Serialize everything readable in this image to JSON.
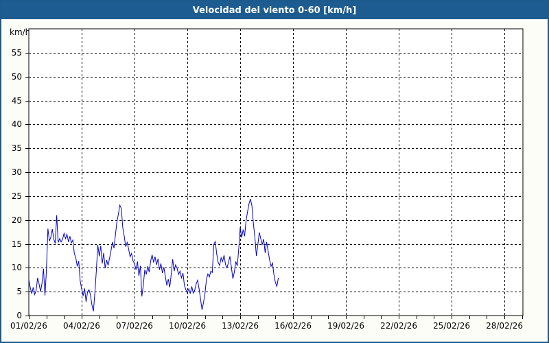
{
  "title": "Velocidad del viento 0-60 [km/h]",
  "colors": {
    "titlebar_bg": "#1d5c90",
    "titlebar_text": "#ffffff",
    "window_border": "#1c5a8e",
    "page_bg": "#fdfdf8",
    "plot_bg": "#ffffff",
    "grid": "#000000",
    "axis": "#000000",
    "line": "#0000cc"
  },
  "chart_data": {
    "type": "line",
    "title": "Velocidad del viento 0-60 [km/h]",
    "y_unit": "km/h",
    "ylabel": "km/h",
    "xlabel": "",
    "ylim": [
      0,
      60
    ],
    "y_ticks": [
      0,
      5,
      10,
      15,
      20,
      25,
      30,
      35,
      40,
      45,
      50,
      55
    ],
    "x_days_shown": 28.05,
    "x_tick_labels": [
      {
        "day": 0,
        "label": "01/02/26"
      },
      {
        "day": 3,
        "label": "04/02/26"
      },
      {
        "day": 6,
        "label": "07/02/26"
      },
      {
        "day": 9,
        "label": "10/02/26"
      },
      {
        "day": 12,
        "label": "13/02/26"
      },
      {
        "day": 15,
        "label": "16/02/26"
      },
      {
        "day": 18,
        "label": "19/02/26"
      },
      {
        "day": 21,
        "label": "22/02/26"
      },
      {
        "day": 24,
        "label": "25/02/26"
      },
      {
        "day": 27,
        "label": "28/02/26"
      }
    ],
    "x_minor_tick_days": [
      0,
      1,
      2,
      3,
      4,
      5,
      6,
      7,
      8,
      9,
      10,
      11,
      12,
      13,
      14,
      15,
      16,
      17,
      18,
      19,
      20,
      21,
      22,
      23,
      24,
      25,
      26,
      27,
      28
    ],
    "grid": "dashed",
    "legend": "none",
    "points_hours_kmh": [
      [
        0,
        7.5
      ],
      [
        2,
        5.8
      ],
      [
        4,
        4.6
      ],
      [
        6,
        5.9
      ],
      [
        8,
        4.4
      ],
      [
        10,
        5.3
      ],
      [
        12,
        7.9
      ],
      [
        14,
        6.6
      ],
      [
        16,
        5.0
      ],
      [
        18,
        6.8
      ],
      [
        20,
        9.8
      ],
      [
        22,
        4.2
      ],
      [
        24,
        9.5
      ],
      [
        26,
        18.2
      ],
      [
        28,
        15.6
      ],
      [
        30,
        16.4
      ],
      [
        32,
        18.1
      ],
      [
        34,
        16.0
      ],
      [
        36,
        15.1
      ],
      [
        38,
        21.0
      ],
      [
        40,
        15.3
      ],
      [
        42,
        16.1
      ],
      [
        44,
        15.4
      ],
      [
        46,
        16.0
      ],
      [
        48,
        17.2
      ],
      [
        50,
        16.1
      ],
      [
        52,
        17.0
      ],
      [
        54,
        15.4
      ],
      [
        56,
        16.6
      ],
      [
        58,
        15.2
      ],
      [
        60,
        15.8
      ],
      [
        62,
        13.0
      ],
      [
        64,
        12.1
      ],
      [
        66,
        10.3
      ],
      [
        68,
        11.4
      ],
      [
        70,
        7.2
      ],
      [
        72,
        5.6
      ],
      [
        74,
        4.1
      ],
      [
        76,
        5.7
      ],
      [
        78,
        2.9
      ],
      [
        80,
        4.9
      ],
      [
        82,
        5.4
      ],
      [
        84,
        4.3
      ],
      [
        86,
        2.2
      ],
      [
        88,
        0.9
      ],
      [
        90,
        4.8
      ],
      [
        92,
        9.4
      ],
      [
        94,
        14.8
      ],
      [
        96,
        12.4
      ],
      [
        98,
        14.6
      ],
      [
        100,
        10.9
      ],
      [
        102,
        13.1
      ],
      [
        104,
        9.9
      ],
      [
        106,
        11.6
      ],
      [
        108,
        10.5
      ],
      [
        110,
        12.0
      ],
      [
        112,
        13.6
      ],
      [
        114,
        15.4
      ],
      [
        116,
        14.1
      ],
      [
        118,
        16.9
      ],
      [
        120,
        19.6
      ],
      [
        122,
        21.2
      ],
      [
        124,
        23.1
      ],
      [
        126,
        22.4
      ],
      [
        128,
        18.4
      ],
      [
        130,
        16.6
      ],
      [
        132,
        14.4
      ],
      [
        134,
        15.3
      ],
      [
        136,
        13.9
      ],
      [
        138,
        12.3
      ],
      [
        140,
        13.0
      ],
      [
        142,
        11.4
      ],
      [
        144,
        10.9
      ],
      [
        146,
        9.6
      ],
      [
        148,
        11.3
      ],
      [
        150,
        8.3
      ],
      [
        152,
        10.4
      ],
      [
        154,
        4.0
      ],
      [
        156,
        6.4
      ],
      [
        158,
        9.6
      ],
      [
        160,
        8.6
      ],
      [
        162,
        10.3
      ],
      [
        164,
        9.1
      ],
      [
        166,
        11.4
      ],
      [
        168,
        12.7
      ],
      [
        170,
        11.1
      ],
      [
        172,
        12.3
      ],
      [
        174,
        10.6
      ],
      [
        176,
        11.9
      ],
      [
        178,
        9.6
      ],
      [
        180,
        10.9
      ],
      [
        182,
        8.9
      ],
      [
        184,
        10.1
      ],
      [
        186,
        8.2
      ],
      [
        188,
        6.3
      ],
      [
        190,
        7.6
      ],
      [
        192,
        5.9
      ],
      [
        194,
        8.6
      ],
      [
        196,
        11.8
      ],
      [
        198,
        9.3
      ],
      [
        200,
        10.6
      ],
      [
        202,
        9.9
      ],
      [
        204,
        8.6
      ],
      [
        206,
        9.3
      ],
      [
        208,
        7.9
      ],
      [
        210,
        8.9
      ],
      [
        212,
        6.3
      ],
      [
        214,
        5.4
      ],
      [
        216,
        4.8
      ],
      [
        218,
        5.6
      ],
      [
        220,
        4.6
      ],
      [
        222,
        6.1
      ],
      [
        224,
        4.7
      ],
      [
        226,
        5.3
      ],
      [
        228,
        6.6
      ],
      [
        230,
        7.4
      ],
      [
        232,
        5.6
      ],
      [
        234,
        3.4
      ],
      [
        236,
        1.2
      ],
      [
        238,
        2.7
      ],
      [
        240,
        4.6
      ],
      [
        242,
        7.6
      ],
      [
        244,
        8.7
      ],
      [
        246,
        8.1
      ],
      [
        248,
        9.3
      ],
      [
        250,
        9.0
      ],
      [
        252,
        14.9
      ],
      [
        254,
        15.5
      ],
      [
        256,
        12.9
      ],
      [
        258,
        11.1
      ],
      [
        260,
        10.5
      ],
      [
        262,
        12.1
      ],
      [
        264,
        11.3
      ],
      [
        266,
        12.6
      ],
      [
        268,
        10.7
      ],
      [
        270,
        10.0
      ],
      [
        272,
        11.1
      ],
      [
        274,
        12.4
      ],
      [
        276,
        10.1
      ],
      [
        278,
        7.7
      ],
      [
        280,
        9.1
      ],
      [
        282,
        11.3
      ],
      [
        284,
        10.4
      ],
      [
        286,
        13.9
      ],
      [
        288,
        18.5
      ],
      [
        290,
        16.3
      ],
      [
        292,
        18.0
      ],
      [
        294,
        16.6
      ],
      [
        296,
        19.9
      ],
      [
        298,
        21.7
      ],
      [
        300,
        23.4
      ],
      [
        302,
        24.4
      ],
      [
        304,
        22.9
      ],
      [
        306,
        19.2
      ],
      [
        308,
        16.4
      ],
      [
        310,
        12.5
      ],
      [
        312,
        14.7
      ],
      [
        314,
        17.4
      ],
      [
        316,
        16.1
      ],
      [
        318,
        14.9
      ],
      [
        320,
        16.0
      ],
      [
        322,
        13.1
      ],
      [
        324,
        15.4
      ],
      [
        326,
        13.5
      ],
      [
        328,
        11.7
      ],
      [
        330,
        10.3
      ],
      [
        332,
        11.0
      ],
      [
        334,
        8.5
      ],
      [
        336,
        6.9
      ],
      [
        338,
        6.1
      ],
      [
        340,
        7.9
      ]
    ]
  }
}
